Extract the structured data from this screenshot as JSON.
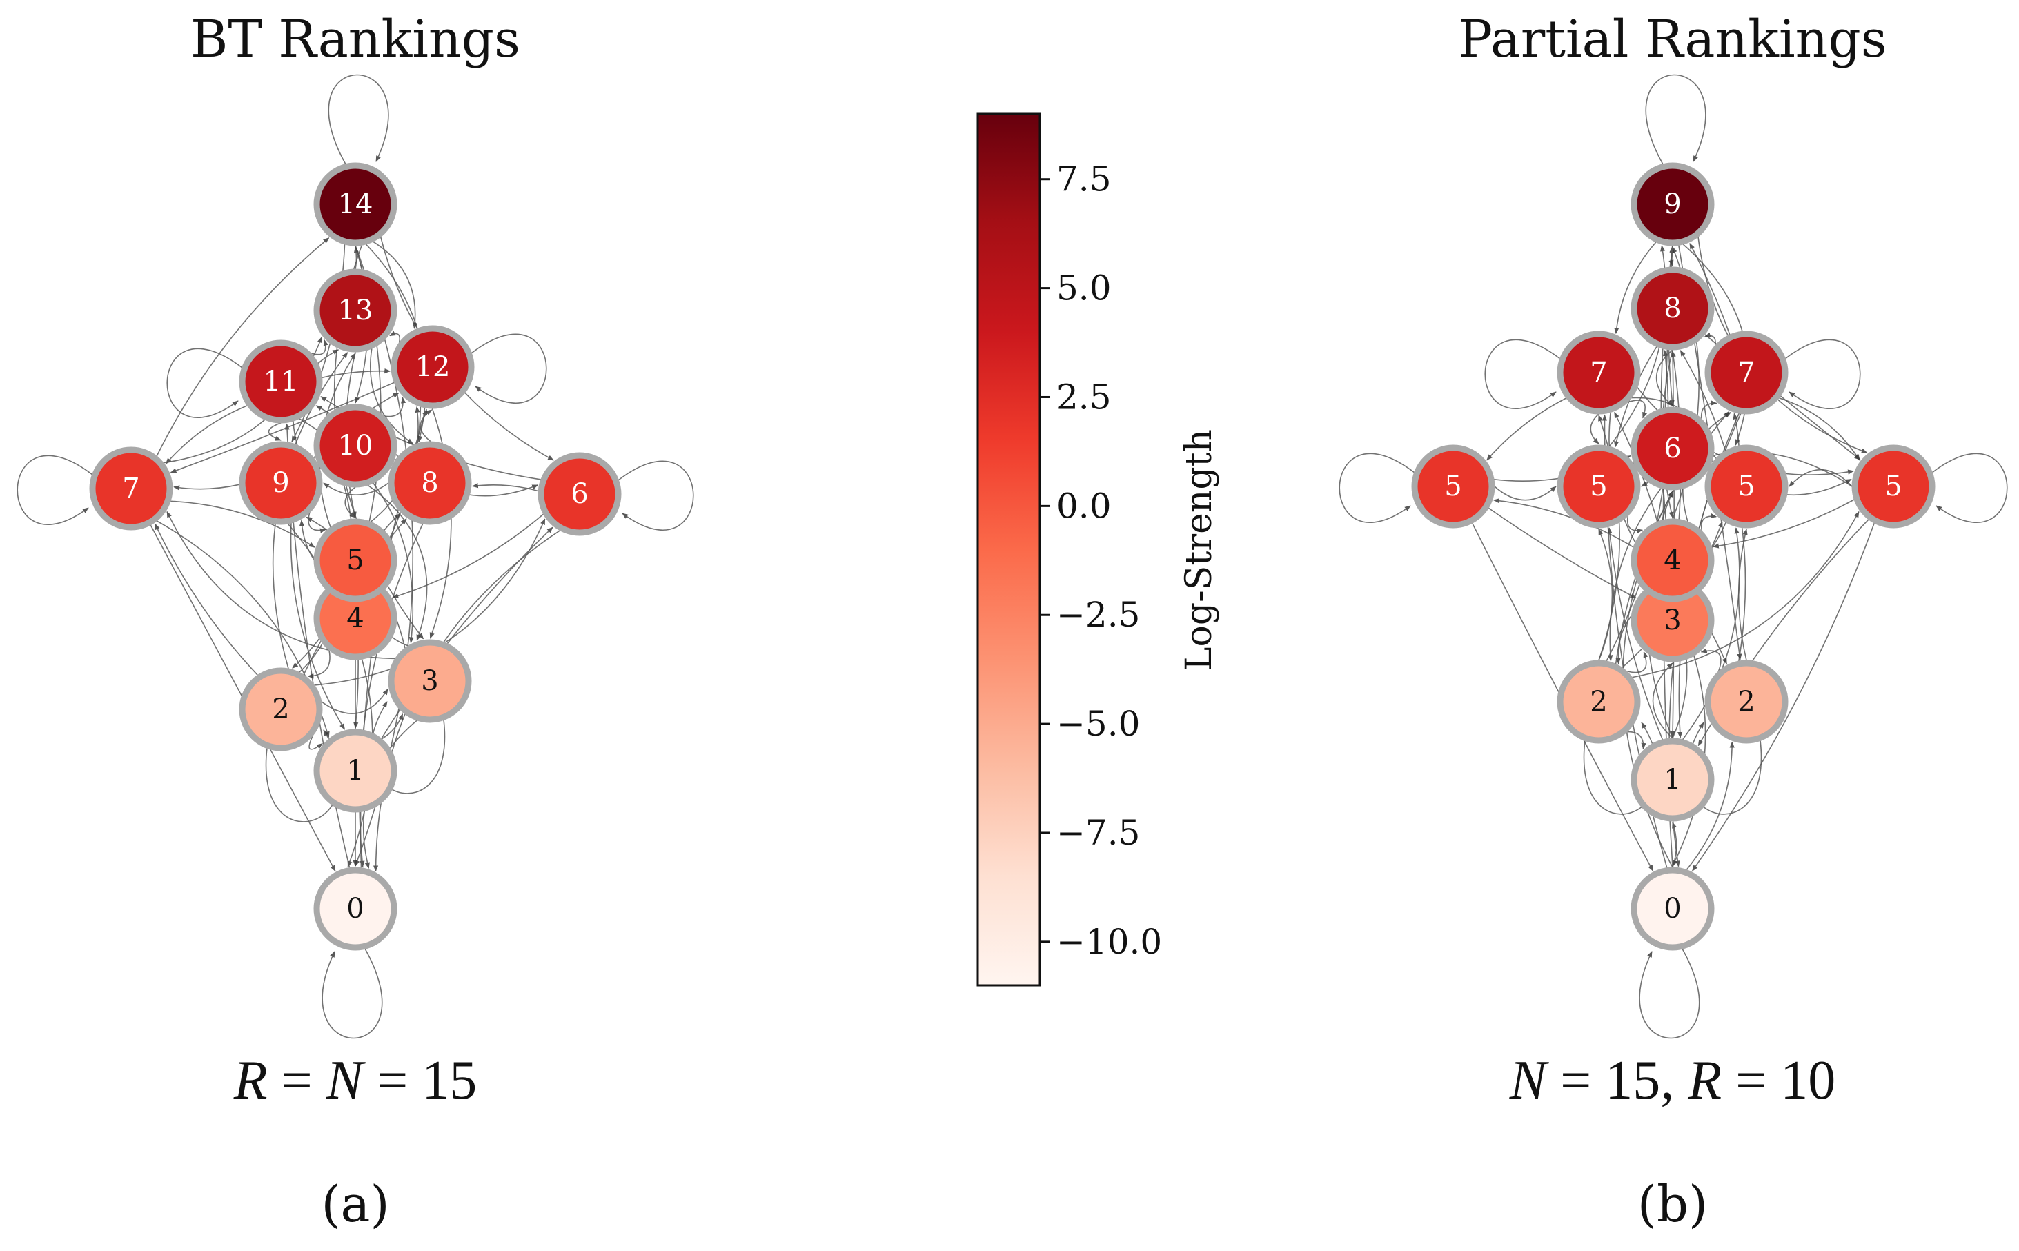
{
  "panels": [
    {
      "id": "a",
      "title": "BT Rankings",
      "equation": {
        "lhs_var1": "R",
        "eq1": " = ",
        "lhs_var2": "N",
        "eq2": " = ",
        "value": "15"
      },
      "caption": "(a)",
      "nodes": [
        {
          "id": "n0",
          "label": "0",
          "strength": -10.8
        },
        {
          "id": "n1",
          "label": "1",
          "strength": -7.8
        },
        {
          "id": "n2",
          "label": "2",
          "strength": -5.6
        },
        {
          "id": "n3",
          "label": "3",
          "strength": -5.0
        },
        {
          "id": "n4",
          "label": "4",
          "strength": -1.4
        },
        {
          "id": "n5",
          "label": "5",
          "strength": -0.2
        },
        {
          "id": "n6",
          "label": "6",
          "strength": 2.0
        },
        {
          "id": "n7",
          "label": "7",
          "strength": 2.0
        },
        {
          "id": "n8",
          "label": "8",
          "strength": 2.0
        },
        {
          "id": "n9",
          "label": "9",
          "strength": 2.0
        },
        {
          "id": "n10",
          "label": "10",
          "strength": 3.6
        },
        {
          "id": "n11",
          "label": "11",
          "strength": 4.4
        },
        {
          "id": "n12",
          "label": "12",
          "strength": 4.6
        },
        {
          "id": "n13",
          "label": "13",
          "strength": 5.8
        },
        {
          "id": "n14",
          "label": "14",
          "strength": 9.0
        }
      ],
      "self_loops": [
        "n14",
        "n7",
        "n6",
        "n11",
        "n12",
        "n2",
        "n3",
        "n0"
      ]
    },
    {
      "id": "b",
      "title": "Partial Rankings",
      "equation": {
        "lhs_var1": "N",
        "eq1": " = 15, ",
        "lhs_var2": "R",
        "eq2": " = ",
        "value": "10"
      },
      "caption": "(b)",
      "nodes": [
        {
          "id": "m0",
          "label": "0",
          "strength": -10.8
        },
        {
          "id": "m1",
          "label": "1",
          "strength": -7.8
        },
        {
          "id": "m2a",
          "label": "2",
          "strength": -5.6
        },
        {
          "id": "m2b",
          "label": "2",
          "strength": -5.6
        },
        {
          "id": "m3",
          "label": "3",
          "strength": -2.0
        },
        {
          "id": "m4",
          "label": "4",
          "strength": -0.2
        },
        {
          "id": "m5a",
          "label": "5",
          "strength": 2.0
        },
        {
          "id": "m5b",
          "label": "5",
          "strength": 2.0
        },
        {
          "id": "m5c",
          "label": "5",
          "strength": 2.0
        },
        {
          "id": "m5d",
          "label": "5",
          "strength": 2.0
        },
        {
          "id": "m6",
          "label": "6",
          "strength": 3.8
        },
        {
          "id": "m7a",
          "label": "7",
          "strength": 4.6
        },
        {
          "id": "m7b",
          "label": "7",
          "strength": 4.6
        },
        {
          "id": "m8",
          "label": "8",
          "strength": 5.8
        },
        {
          "id": "m9",
          "label": "9",
          "strength": 9.0
        }
      ],
      "self_loops": [
        "m9",
        "m5a",
        "m5d",
        "m7a",
        "m7b",
        "m2a",
        "m2b",
        "m0"
      ]
    }
  ],
  "colorbar": {
    "label": "Log-Strength",
    "min": -11.0,
    "max": 9.0,
    "ticks": [
      {
        "value": 7.5,
        "label": "7.5"
      },
      {
        "value": 5.0,
        "label": "5.0"
      },
      {
        "value": 2.5,
        "label": "2.5"
      },
      {
        "value": 0.0,
        "label": "0.0"
      },
      {
        "value": -2.5,
        "label": "−2.5"
      },
      {
        "value": -5.0,
        "label": "−5.0"
      },
      {
        "value": -7.5,
        "label": "−7.5"
      },
      {
        "value": -10.0,
        "label": "−10.0"
      }
    ],
    "colors": [
      "#fff5f0",
      "#fee0d2",
      "#fcbba1",
      "#fc9272",
      "#fb6a4a",
      "#ef3b2c",
      "#cb181d",
      "#a50f15",
      "#67000d"
    ]
  }
}
